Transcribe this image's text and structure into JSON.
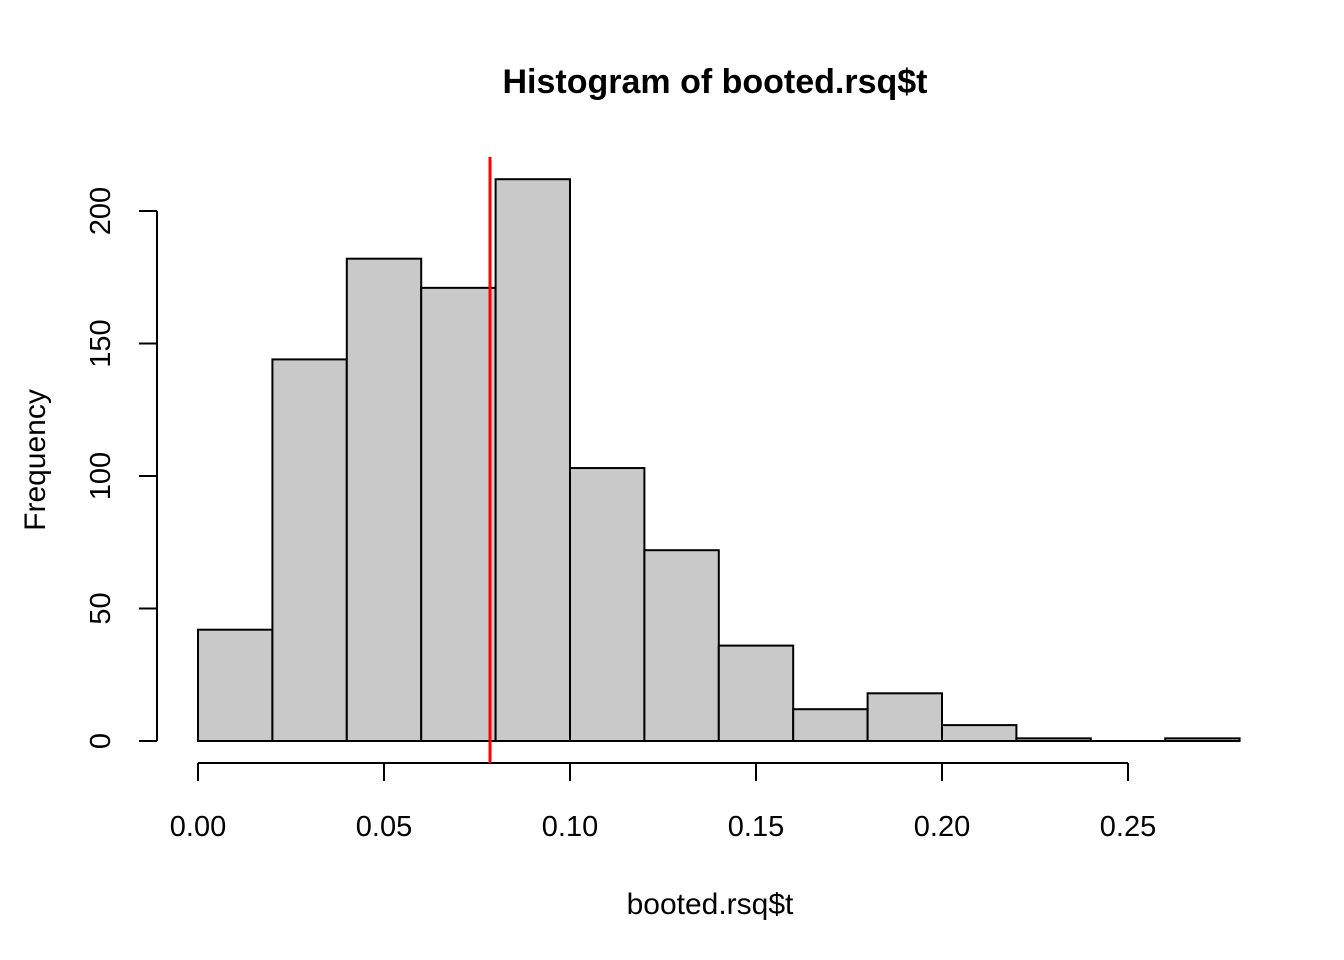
{
  "window": {
    "background": "#FFFFFF"
  },
  "chart_data": {
    "type": "bar",
    "variant": "histogram",
    "title": "Histogram of booted.rsq$t",
    "xlabel": "booted.rsq$t",
    "ylabel": "Frequency",
    "bin_edges": [
      0.0,
      0.02,
      0.04,
      0.06,
      0.08,
      0.1,
      0.12,
      0.14,
      0.16,
      0.18,
      0.2,
      0.22,
      0.24,
      0.26,
      0.28
    ],
    "counts": [
      42,
      144,
      182,
      171,
      212,
      103,
      72,
      36,
      12,
      18,
      6,
      1,
      0,
      1
    ],
    "x_ticks": [
      0.0,
      0.05,
      0.1,
      0.15,
      0.2,
      0.25
    ],
    "x_tick_labels": [
      "0.00",
      "0.05",
      "0.10",
      "0.15",
      "0.20",
      "0.25"
    ],
    "y_ticks": [
      0,
      50,
      100,
      150,
      200
    ],
    "y_tick_labels": [
      "0",
      "50",
      "100",
      "150",
      "200"
    ],
    "xlim": [
      0,
      0.28
    ],
    "ylim": [
      0,
      212
    ],
    "grid": false,
    "vline": {
      "value": 0.0785,
      "color": "#FF0000"
    },
    "colors": {
      "bar_fill": "#C9C9C9",
      "bar_stroke": "#000000",
      "axis": "#000000",
      "text": "#000000",
      "background": "#FFFFFF"
    }
  }
}
